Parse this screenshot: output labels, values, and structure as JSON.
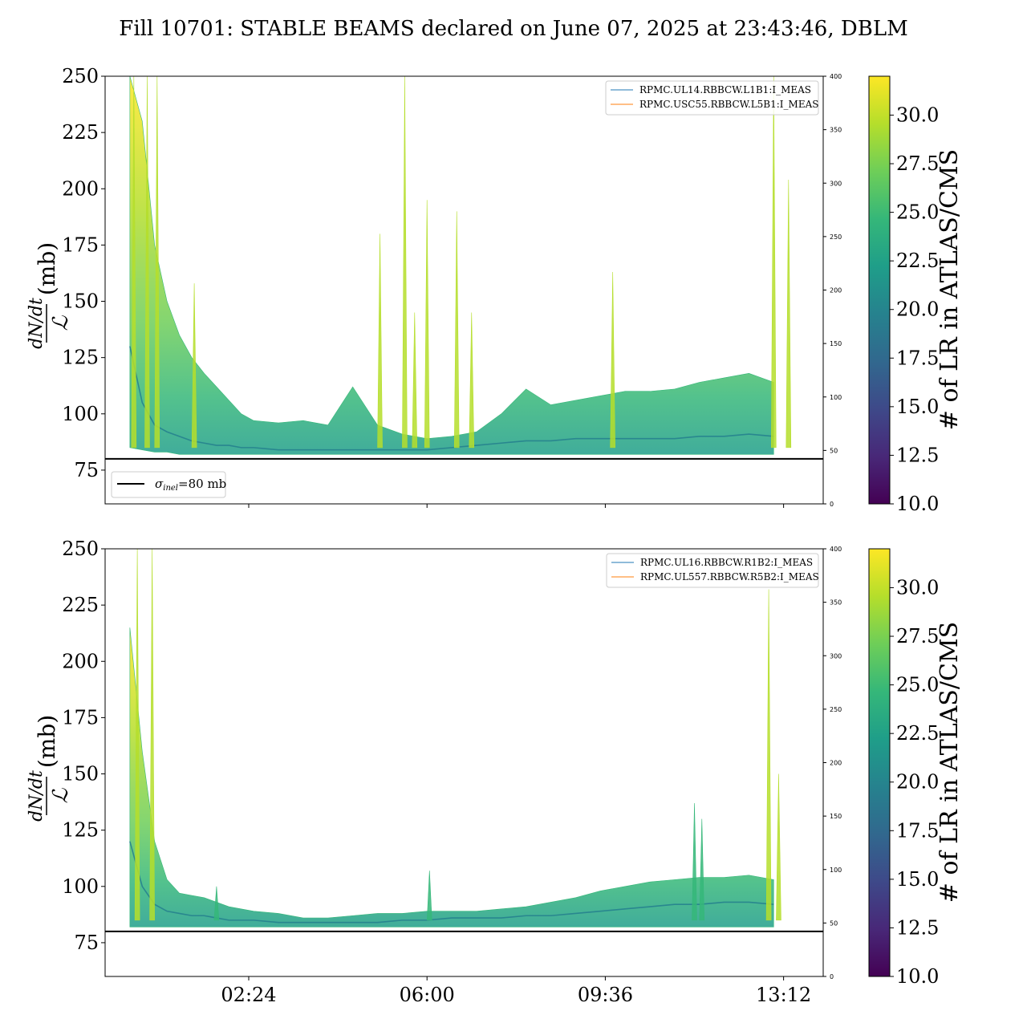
{
  "title": "Fill 10701: STABLE BEAMS declared on June 07, 2025 at 23:43:46, DBLM",
  "colors": {
    "viridis": [
      "#440154",
      "#482878",
      "#3e4989",
      "#31688e",
      "#26828e",
      "#1f9e89",
      "#35b779",
      "#6ece58",
      "#b5de2b",
      "#fde725"
    ],
    "series_blue": "#1f77b4",
    "series_orange": "#ff7f0e",
    "threshold": "#000000"
  },
  "chart_data": [
    {
      "type": "area",
      "panel": "top",
      "ylabel_num": "dN/dt",
      "ylabel_den": "ℒ",
      "ylabel_unit": "(mb)",
      "ylim": [
        60,
        250
      ],
      "yticks": [
        75,
        100,
        125,
        150,
        175,
        200,
        225,
        250
      ],
      "y2lim": [
        0,
        400
      ],
      "y2ticks": [
        0,
        50,
        100,
        150,
        200,
        250,
        300,
        350,
        400
      ],
      "xlim_hours": [
        -0.5,
        14.0
      ],
      "xticks": [],
      "threshold": {
        "value": 80,
        "label_sym": "σ",
        "label_sub": "inel",
        "label_rest": "=80 mb"
      },
      "legend": {
        "position": "upper right",
        "entries": [
          "RPMC.UL14.RBBCW.L1B1:I_MEAS",
          "RPMC.USC55.RBBCW.L5B1:I_MEAS"
        ]
      },
      "colorbar": {
        "label": "# of LR in ATLAS/CMS",
        "range": [
          10.0,
          32.0
        ],
        "ticks": [
          "10.0",
          "12.5",
          "15.0",
          "17.5",
          "20.0",
          "22.5",
          "25.0",
          "27.5",
          "30.0"
        ]
      },
      "band": {
        "x": [
          0.0,
          0.25,
          0.5,
          0.75,
          1.0,
          1.25,
          1.5,
          1.75,
          2.0,
          2.25,
          2.5,
          3.0,
          3.5,
          4.0,
          4.5,
          5.0,
          5.5,
          6.0,
          6.5,
          7.0,
          7.5,
          8.0,
          8.5,
          9.0,
          9.5,
          10.0,
          10.5,
          11.0,
          11.5,
          12.0,
          12.5,
          13.0
        ],
        "upper": [
          250,
          230,
          175,
          150,
          135,
          125,
          118,
          112,
          106,
          100,
          97,
          96,
          97,
          95,
          112,
          95,
          91,
          89,
          90,
          92,
          100,
          111,
          104,
          106,
          108,
          110,
          110,
          111,
          114,
          116,
          118,
          114
        ],
        "lower": [
          85,
          84,
          83,
          83,
          82,
          82,
          82,
          82,
          82,
          82,
          82,
          82,
          82,
          82,
          82,
          82,
          82,
          82,
          82,
          82,
          82,
          82,
          82,
          82,
          82,
          82,
          82,
          82,
          82,
          82,
          82,
          82
        ],
        "median": [
          130,
          105,
          95,
          92,
          90,
          88,
          87,
          86,
          86,
          85,
          85,
          84,
          84,
          84,
          84,
          84,
          84,
          84,
          85,
          86,
          87,
          88,
          88,
          89,
          89,
          89,
          89,
          89,
          90,
          90,
          91,
          90
        ]
      },
      "spikes": [
        {
          "x": 0.08,
          "y": 250
        },
        {
          "x": 0.35,
          "y": 250
        },
        {
          "x": 0.55,
          "y": 250
        },
        {
          "x": 1.3,
          "y": 158
        },
        {
          "x": 5.05,
          "y": 180
        },
        {
          "x": 5.55,
          "y": 250
        },
        {
          "x": 5.75,
          "y": 145
        },
        {
          "x": 6.0,
          "y": 195
        },
        {
          "x": 6.6,
          "y": 190
        },
        {
          "x": 6.9,
          "y": 145
        },
        {
          "x": 9.75,
          "y": 163
        },
        {
          "x": 13.0,
          "y": 250
        },
        {
          "x": 13.3,
          "y": 204
        }
      ]
    },
    {
      "type": "area",
      "panel": "bottom",
      "ylabel_num": "dN/dt",
      "ylabel_den": "ℒ",
      "ylabel_unit": "(mb)",
      "ylim": [
        60,
        250
      ],
      "yticks": [
        75,
        100,
        125,
        150,
        175,
        200,
        225,
        250
      ],
      "y2lim": [
        0,
        400
      ],
      "y2ticks": [
        0,
        50,
        100,
        150,
        200,
        250,
        300,
        350,
        400
      ],
      "xlim_hours": [
        -0.5,
        14.0
      ],
      "xticks": [
        "02:24",
        "06:00",
        "09:36",
        "13:12"
      ],
      "xtick_hours": [
        2.4,
        6.0,
        9.6,
        13.2
      ],
      "threshold": {
        "value": 80
      },
      "legend": {
        "position": "upper right",
        "entries": [
          "RPMC.UL16.RBBCW.R1B2:I_MEAS",
          "RPMC.UL557.RBBCW.R5B2:I_MEAS"
        ]
      },
      "colorbar": {
        "label": "# of LR in ATLAS/CMS",
        "range": [
          10.0,
          32.0
        ],
        "ticks": [
          "10.0",
          "12.5",
          "15.0",
          "17.5",
          "20.0",
          "22.5",
          "25.0",
          "27.5",
          "30.0"
        ]
      },
      "band": {
        "x": [
          0.0,
          0.25,
          0.5,
          0.75,
          1.0,
          1.25,
          1.5,
          1.75,
          2.0,
          2.5,
          3.0,
          3.5,
          4.0,
          4.5,
          5.0,
          5.5,
          6.0,
          6.5,
          7.0,
          7.5,
          8.0,
          8.5,
          9.0,
          9.5,
          10.0,
          10.5,
          11.0,
          11.5,
          12.0,
          12.5,
          13.0
        ],
        "upper": [
          215,
          160,
          120,
          103,
          97,
          96,
          95,
          93,
          91,
          89,
          88,
          86,
          86,
          87,
          88,
          88,
          89,
          89,
          89,
          90,
          91,
          93,
          95,
          98,
          100,
          102,
          103,
          104,
          104,
          105,
          103
        ],
        "lower": [
          82,
          82,
          82,
          82,
          82,
          82,
          82,
          82,
          82,
          82,
          82,
          82,
          82,
          82,
          82,
          82,
          82,
          82,
          82,
          82,
          82,
          82,
          82,
          82,
          82,
          82,
          82,
          82,
          82,
          82,
          82
        ],
        "median": [
          120,
          100,
          92,
          89,
          88,
          87,
          87,
          86,
          85,
          85,
          84,
          84,
          84,
          84,
          84,
          85,
          85,
          86,
          86,
          86,
          87,
          87,
          88,
          89,
          90,
          91,
          92,
          92,
          93,
          93,
          92
        ]
      },
      "spikes": [
        {
          "x": 0.15,
          "y": 250
        },
        {
          "x": 0.45,
          "y": 250
        },
        {
          "x": 1.75,
          "y": 100
        },
        {
          "x": 6.05,
          "y": 107
        },
        {
          "x": 11.4,
          "y": 137
        },
        {
          "x": 11.55,
          "y": 130
        },
        {
          "x": 12.9,
          "y": 232
        },
        {
          "x": 13.1,
          "y": 150
        }
      ]
    }
  ]
}
